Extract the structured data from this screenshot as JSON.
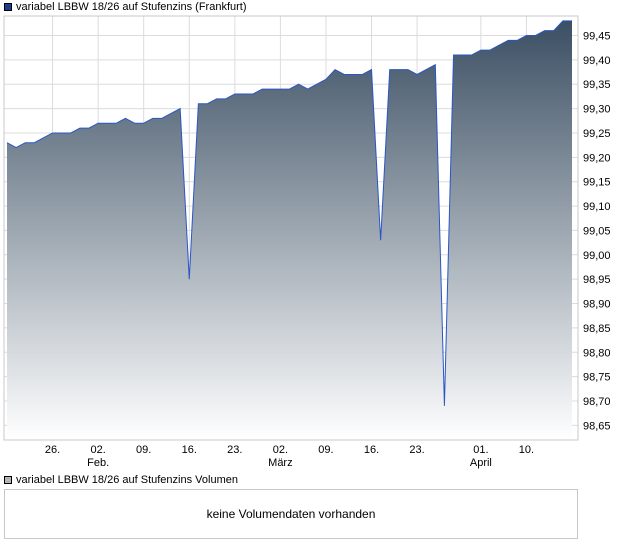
{
  "price_legend": {
    "label": "variabel LBBW 18/26 auf Stufenzins (Frankfurt)",
    "swatch_color": "#1c3c8c"
  },
  "volume_legend": {
    "label": "variabel LBBW 18/26 auf Stufenzins Volumen",
    "swatch_color": "#b4b4b4"
  },
  "volume_panel": {
    "message": "keine Volumendaten vorhanden"
  },
  "chart_data": {
    "type": "area",
    "series": [
      {
        "name": "variabel LBBW 18/26 auf Stufenzins (Frankfurt)",
        "values": [
          99.23,
          99.22,
          99.23,
          99.23,
          99.24,
          99.25,
          99.25,
          99.25,
          99.26,
          99.26,
          99.27,
          99.27,
          99.27,
          99.28,
          99.27,
          99.27,
          99.28,
          99.28,
          99.29,
          99.3,
          98.95,
          99.31,
          99.31,
          99.32,
          99.32,
          99.33,
          99.33,
          99.33,
          99.34,
          99.34,
          99.34,
          99.34,
          99.35,
          99.34,
          99.35,
          99.36,
          99.38,
          99.37,
          99.37,
          99.37,
          99.38,
          99.03,
          99.38,
          99.38,
          99.38,
          99.37,
          99.38,
          99.39,
          98.69,
          99.41,
          99.41,
          99.41,
          99.42,
          99.42,
          99.43,
          99.44,
          99.44,
          99.45,
          99.45,
          99.46,
          99.46,
          99.48,
          99.48
        ]
      }
    ],
    "ylim": [
      98.62,
      99.49
    ],
    "yticks": [
      98.65,
      98.7,
      98.75,
      98.8,
      98.85,
      98.9,
      98.95,
      99.0,
      99.05,
      99.1,
      99.15,
      99.2,
      99.25,
      99.3,
      99.35,
      99.4,
      99.45
    ],
    "ytick_labels": [
      "98,65",
      "98,70",
      "98,75",
      "98,80",
      "98,85",
      "98,90",
      "98,95",
      "99,00",
      "99,05",
      "99,10",
      "99,15",
      "99,20",
      "99,25",
      "99,30",
      "99,35",
      "99,40",
      "99,45"
    ],
    "xticks": [
      {
        "index": 5,
        "label": "26.",
        "sub": ""
      },
      {
        "index": 10,
        "label": "02.",
        "sub": "Feb."
      },
      {
        "index": 15,
        "label": "09.",
        "sub": ""
      },
      {
        "index": 20,
        "label": "16.",
        "sub": ""
      },
      {
        "index": 25,
        "label": "23.",
        "sub": ""
      },
      {
        "index": 30,
        "label": "02.",
        "sub": "März"
      },
      {
        "index": 35,
        "label": "09.",
        "sub": ""
      },
      {
        "index": 40,
        "label": "16.",
        "sub": ""
      },
      {
        "index": 45,
        "label": "23.",
        "sub": ""
      },
      {
        "index": 52,
        "label": "01.",
        "sub": "April"
      },
      {
        "index": 57,
        "label": "10.",
        "sub": ""
      }
    ],
    "grid": true,
    "legend": "top-left",
    "line_color": "#2a56c6",
    "fill_top_color": "#3b4f63",
    "fill_bottom_color": "#ffffff"
  }
}
